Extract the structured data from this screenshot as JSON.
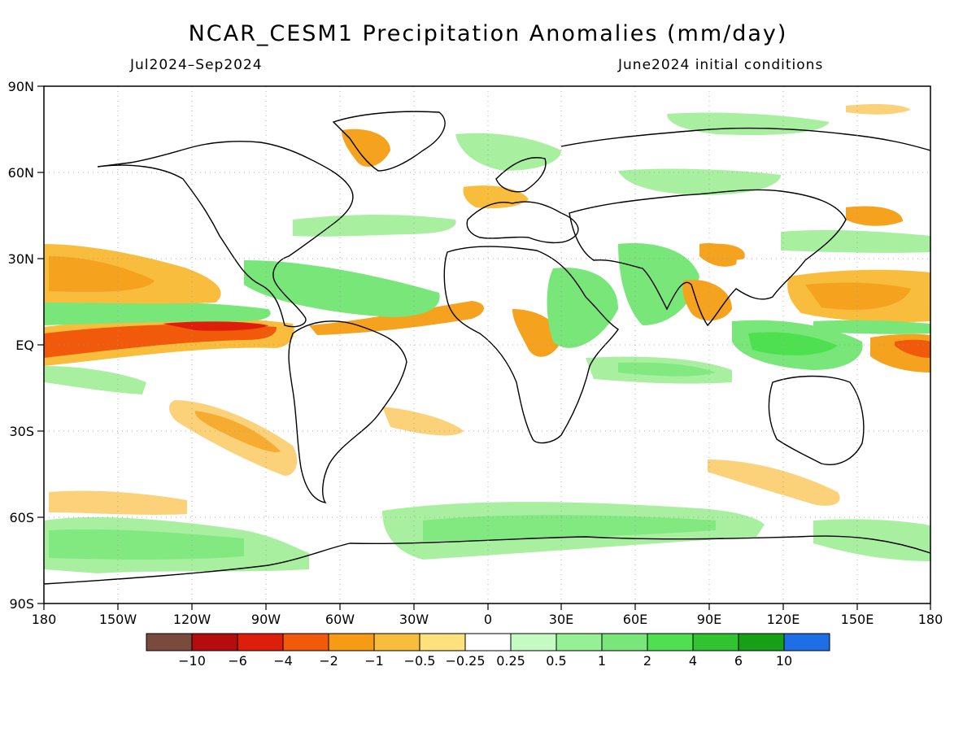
{
  "header": {
    "title": "NCAR_CESM1 Precipitation Anomalies (mm/day)",
    "period": "Jul2024–Sep2024",
    "init": "June2024 initial conditions"
  },
  "map": {
    "lat_ticks": [
      "90N",
      "60N",
      "30N",
      "EQ",
      "30S",
      "60S",
      "90S"
    ],
    "lon_ticks": [
      "180",
      "150W",
      "120W",
      "90W",
      "60W",
      "30W",
      "0",
      "30E",
      "60E",
      "90E",
      "120E",
      "150E",
      "180"
    ]
  },
  "colorbar": {
    "labels": [
      "−10",
      "−6",
      "−4",
      "−2",
      "−1",
      "−0.5",
      "−0.25",
      "0.25",
      "0.5",
      "1",
      "2",
      "4",
      "6",
      "10"
    ],
    "colors": [
      "#7a4a3c",
      "#b50d0d",
      "#dc1e0a",
      "#f05a0a",
      "#f59b14",
      "#f9bd3d",
      "#fde27c",
      "#ffffff",
      "#c3fbc3",
      "#96f096",
      "#78e678",
      "#4ee04e",
      "#31c431",
      "#16a016",
      "#1e6ee6"
    ]
  },
  "colors": {
    "dry_strong": "#e84a10",
    "dry_mid": "#f5a21e",
    "dry_light": "#fbd27a",
    "wet_light": "#a8f0a0",
    "wet_mid": "#6ee06e",
    "coast": "#000000"
  }
}
